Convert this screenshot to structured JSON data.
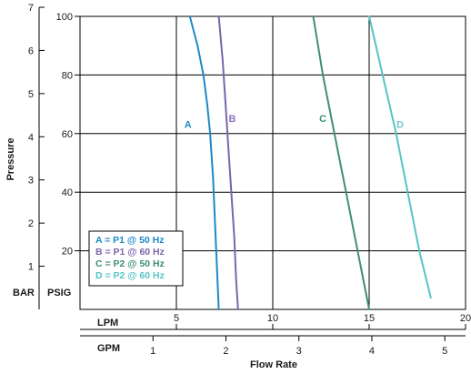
{
  "chart_data": {
    "type": "line",
    "ylabel": "Pressure",
    "xlabel": "Flow Rate",
    "units": {
      "bar": "BAR",
      "psig": "PSIG",
      "lpm": "LPM",
      "gpm": "GPM"
    },
    "bar_axis": {
      "ticks": [
        "1",
        "2",
        "3",
        "4",
        "5",
        "6",
        "7"
      ],
      "range": [
        0.0,
        7.0
      ]
    },
    "psig_axis": {
      "ticks": [
        "20",
        "40",
        "60",
        "80",
        "100"
      ],
      "range": [
        0,
        100
      ]
    },
    "lpm_axis": {
      "ticks": [
        "5",
        "10",
        "15",
        "20"
      ],
      "range": [
        0,
        20
      ]
    },
    "gpm_axis": {
      "ticks": [
        "1",
        "2",
        "3",
        "4",
        "5"
      ]
    },
    "grid": true,
    "legend_position": "bottom-left",
    "legend": [
      "A = P1 @ 50 Hz",
      "B = P1 @ 60 Hz",
      "C = P2 @ 50 Hz",
      "D = P2 @ 60 Hz"
    ],
    "series": [
      {
        "name": "A",
        "color": "#1e88c8",
        "points": [
          [
            5.7,
            100
          ],
          [
            6.1,
            90
          ],
          [
            6.4,
            80
          ],
          [
            6.6,
            70
          ],
          [
            6.75,
            60
          ],
          [
            6.9,
            45
          ],
          [
            7.0,
            30
          ],
          [
            7.1,
            15
          ],
          [
            7.2,
            0
          ]
        ]
      },
      {
        "name": "B",
        "color": "#7b64aa",
        "points": [
          [
            7.2,
            100
          ],
          [
            7.4,
            85
          ],
          [
            7.55,
            70
          ],
          [
            7.7,
            55
          ],
          [
            7.85,
            40
          ],
          [
            8.0,
            25
          ],
          [
            8.1,
            10
          ],
          [
            8.2,
            0
          ]
        ]
      },
      {
        "name": "C",
        "color": "#3f8f72",
        "points": [
          [
            12.1,
            100
          ],
          [
            12.6,
            80
          ],
          [
            13.2,
            60
          ],
          [
            13.8,
            40
          ],
          [
            14.4,
            20
          ],
          [
            15.0,
            0
          ]
        ]
      },
      {
        "name": "D",
        "color": "#57c4c6",
        "points": [
          [
            15.0,
            100
          ],
          [
            15.7,
            80
          ],
          [
            16.4,
            60
          ],
          [
            17.0,
            40
          ],
          [
            17.6,
            20
          ],
          [
            18.2,
            4
          ]
        ]
      }
    ],
    "series_labels": [
      {
        "text": "A",
        "color": "#1e88c8",
        "x": 5.6,
        "y": 62
      },
      {
        "text": "B",
        "color": "#8a74c0",
        "x": 7.9,
        "y": 64
      },
      {
        "text": "C",
        "color": "#3f8f72",
        "x": 12.6,
        "y": 64
      },
      {
        "text": "D",
        "color": "#6ccbd2",
        "x": 16.6,
        "y": 62
      }
    ]
  }
}
